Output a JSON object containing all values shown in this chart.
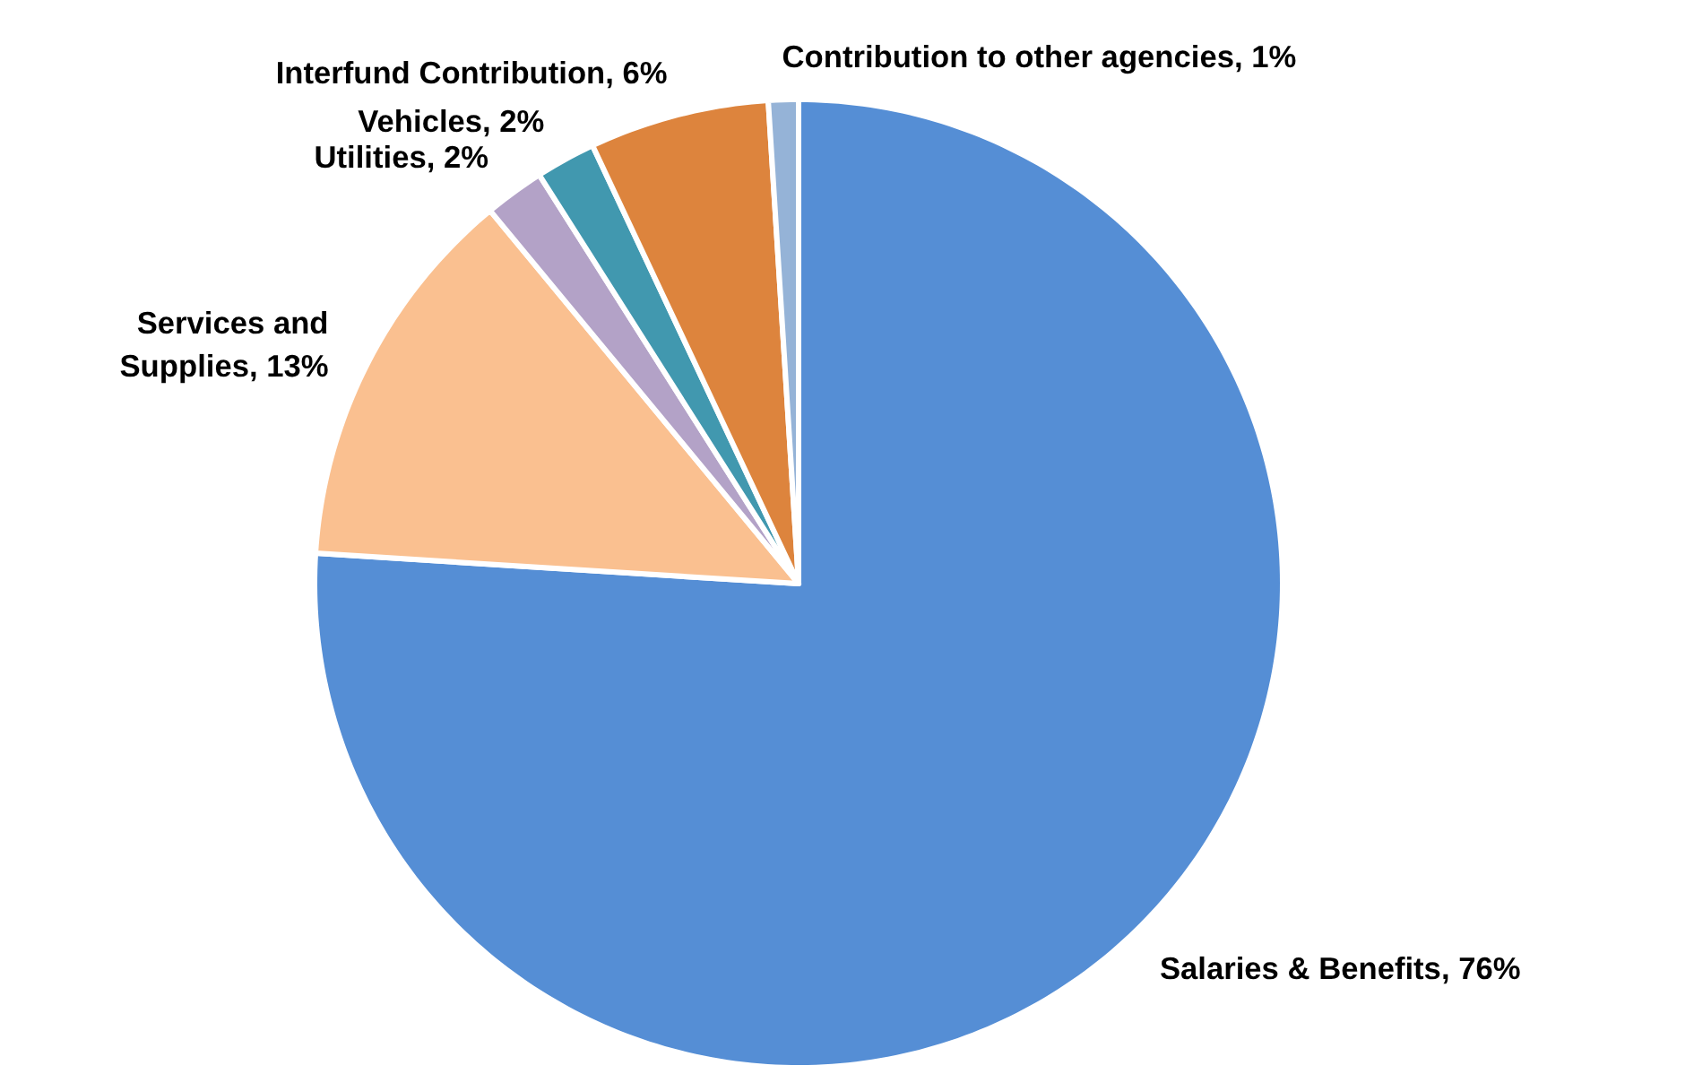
{
  "chart_data": {
    "type": "pie",
    "categories": [
      "Salaries & Benefits, 76%",
      "Services and Supplies, 13%",
      "Utilities, 2%",
      "Vehicles, 2%",
      "Interfund Contribution, 6%",
      "Contribution to other agencies, 1%"
    ],
    "values": [
      76,
      13,
      2,
      2,
      6,
      1
    ],
    "colors": [
      "#558ed5",
      "#fac090",
      "#b3a2c7",
      "#4198af",
      "#dd843d",
      "#95b3d7"
    ],
    "legend": false
  }
}
